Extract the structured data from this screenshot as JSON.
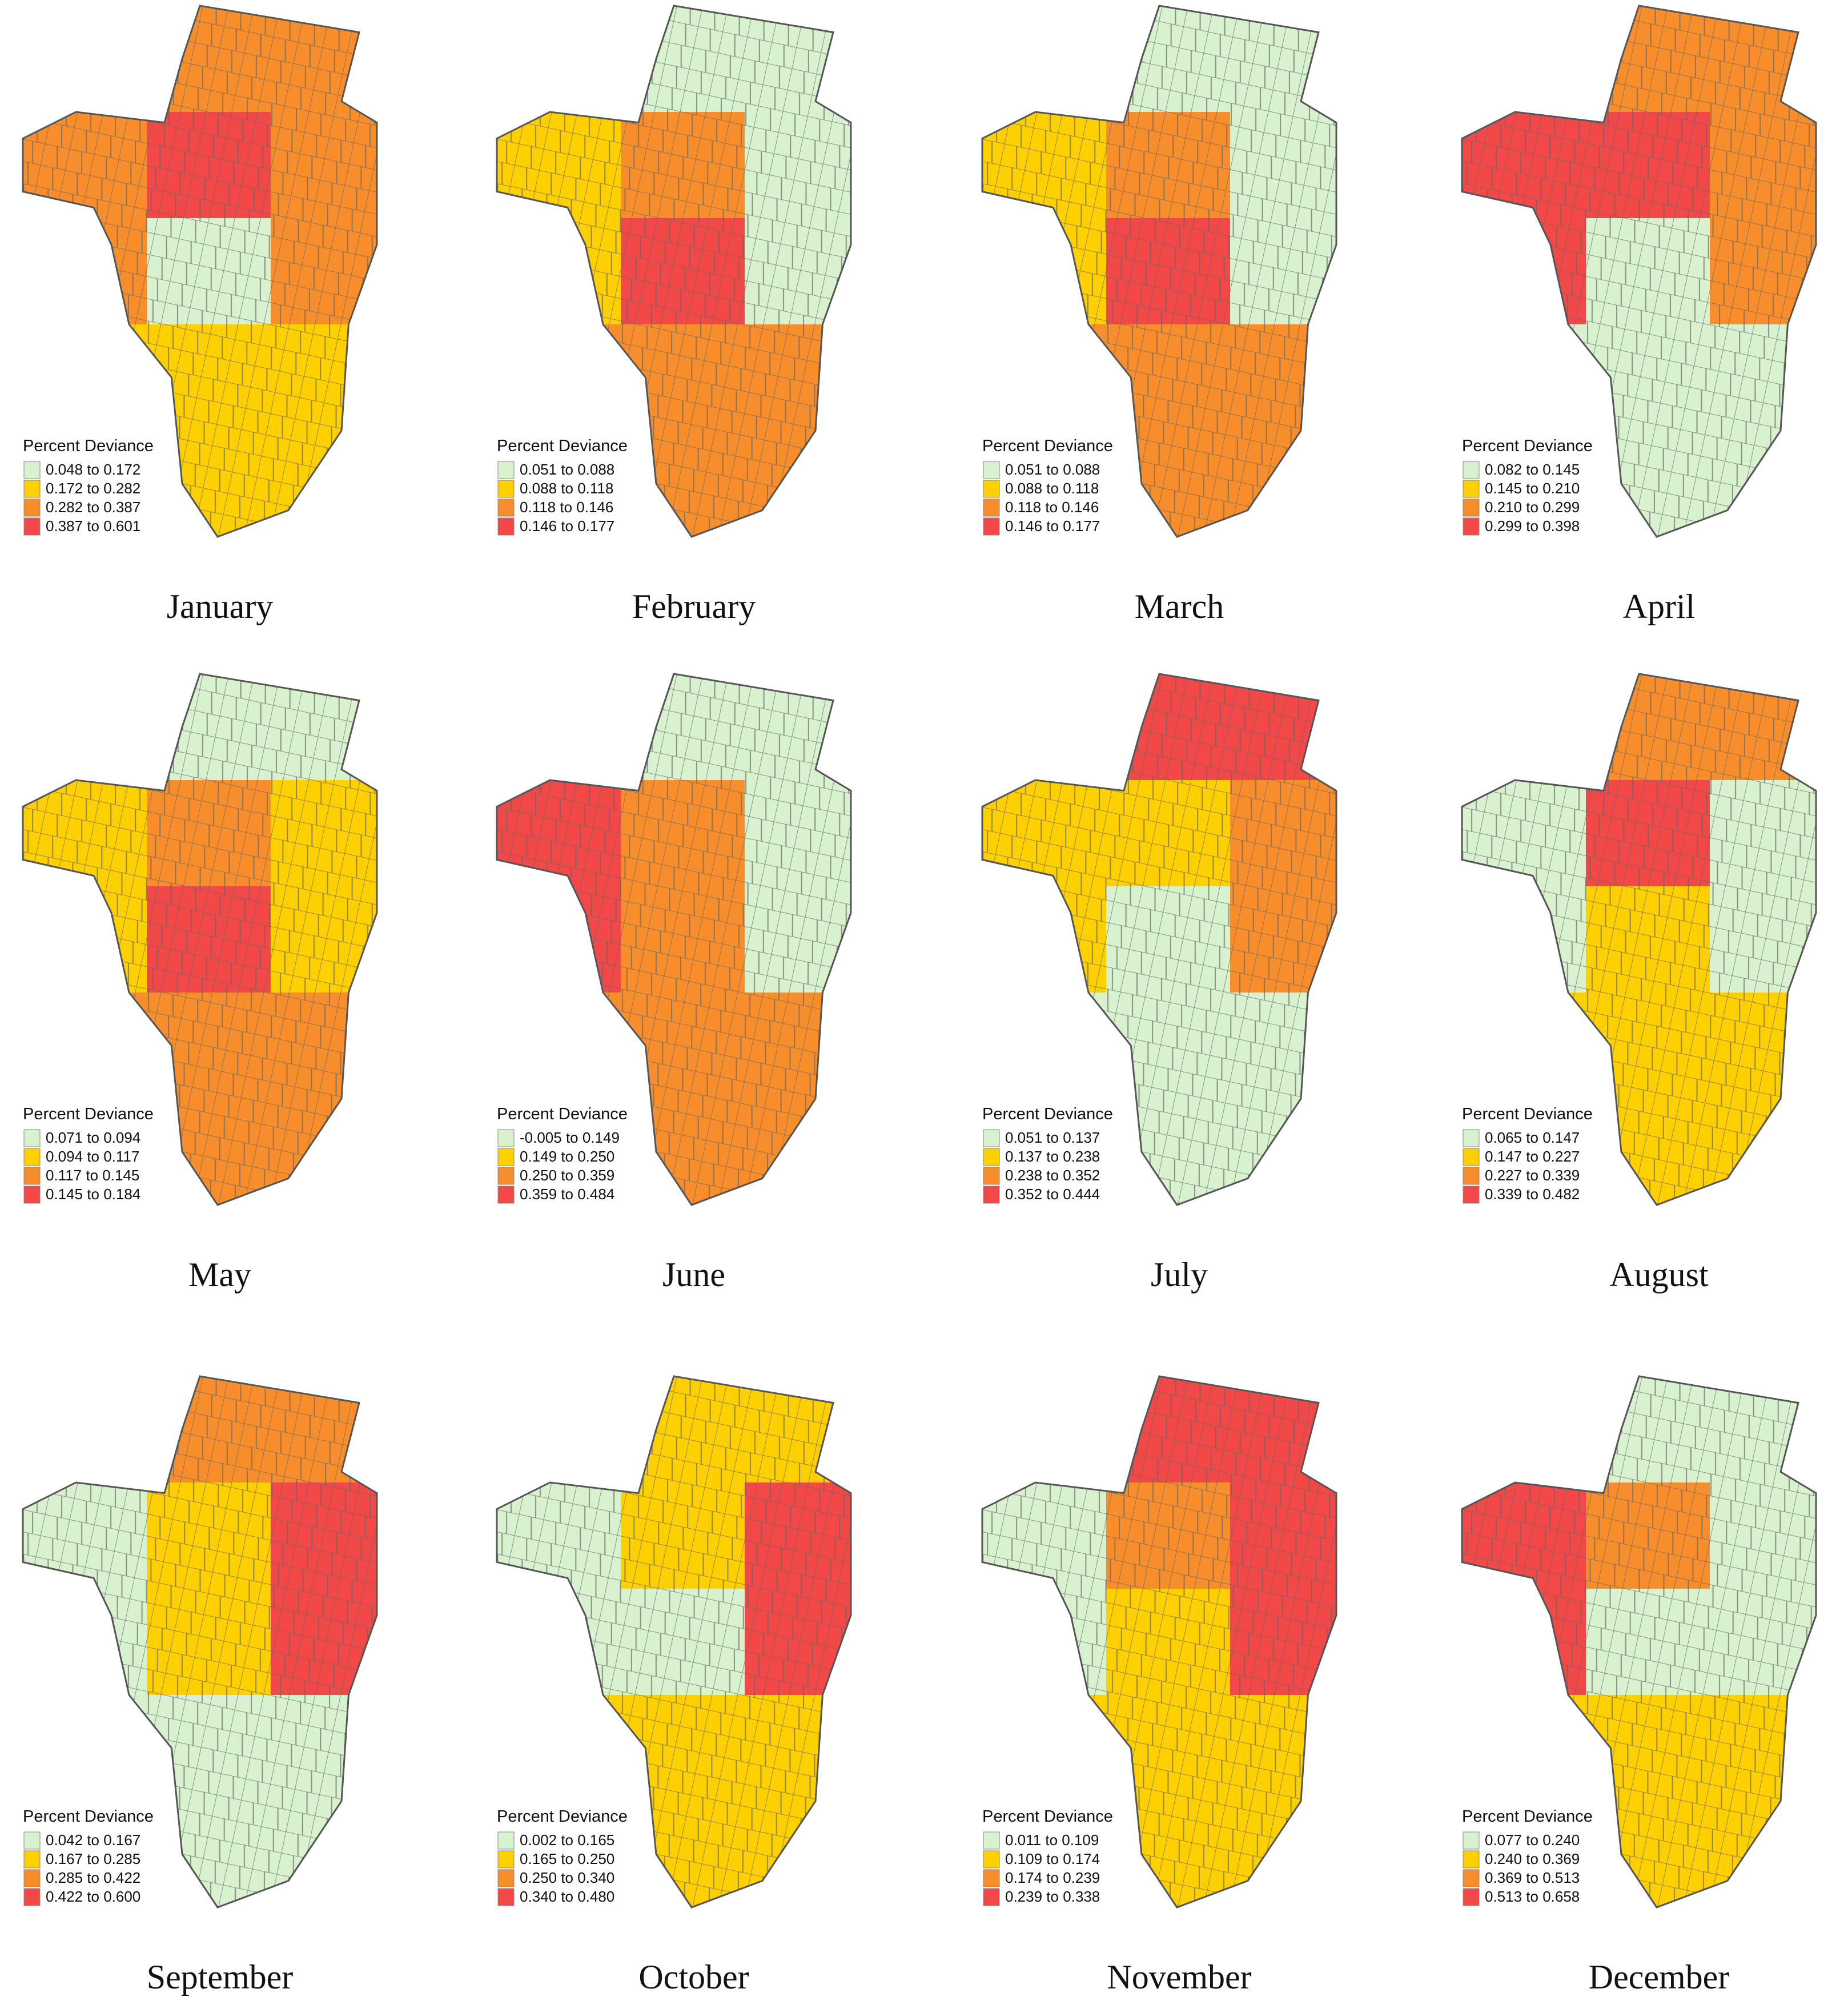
{
  "legend_colors": [
    "#d8f2cf",
    "#ffd000",
    "#f78e2b",
    "#f24848"
  ],
  "zone_names": [
    "north",
    "west",
    "center-north",
    "east",
    "center",
    "south"
  ],
  "panels": [
    {
      "month": "January",
      "legend_title": "Percent Deviance",
      "legend": [
        "0.048 to 0.172",
        "0.172 to 0.282",
        "0.282 to 0.387",
        "0.387 to 0.601"
      ],
      "zones": [
        2,
        2,
        3,
        2,
        0,
        1
      ]
    },
    {
      "month": "February",
      "legend_title": "Percent Deviance",
      "legend": [
        "0.051 to 0.088",
        "0.088 to 0.118",
        "0.118 to 0.146",
        "0.146 to 0.177"
      ],
      "zones": [
        0,
        1,
        2,
        0,
        3,
        2
      ]
    },
    {
      "month": "March",
      "legend_title": "Percent Deviance",
      "legend": [
        "0.051 to 0.088",
        "0.088 to 0.118",
        "0.118 to 0.146",
        "0.146 to 0.177"
      ],
      "zones": [
        0,
        1,
        2,
        0,
        3,
        2
      ]
    },
    {
      "month": "April",
      "legend_title": "Percent Deviance",
      "legend": [
        "0.082 to 0.145",
        "0.145 to 0.210",
        "0.210 to 0.299",
        "0.299 to 0.398"
      ],
      "zones": [
        2,
        3,
        3,
        2,
        0,
        0
      ]
    },
    {
      "month": "May",
      "legend_title": "Percent Deviance",
      "legend": [
        "0.071 to 0.094",
        "0.094 to 0.117",
        "0.117 to 0.145",
        "0.145 to 0.184"
      ],
      "zones": [
        0,
        1,
        2,
        1,
        3,
        2
      ]
    },
    {
      "month": "June",
      "legend_title": "Percent Deviance",
      "legend": [
        "-0.005 to 0.149",
        "0.149 to 0.250",
        "0.250 to 0.359",
        "0.359 to 0.484"
      ],
      "zones": [
        0,
        3,
        2,
        0,
        2,
        2
      ]
    },
    {
      "month": "July",
      "legend_title": "Percent Deviance",
      "legend": [
        "0.051 to 0.137",
        "0.137 to 0.238",
        "0.238 to 0.352",
        "0.352 to 0.444"
      ],
      "zones": [
        3,
        1,
        1,
        2,
        0,
        0
      ]
    },
    {
      "month": "August",
      "legend_title": "Percent Deviance",
      "legend": [
        "0.065 to 0.147",
        "0.147 to 0.227",
        "0.227 to 0.339",
        "0.339 to 0.482"
      ],
      "zones": [
        2,
        0,
        3,
        0,
        1,
        1
      ]
    },
    {
      "month": "September",
      "legend_title": "Percent Deviance",
      "legend": [
        "0.042 to 0.167",
        "0.167 to 0.285",
        "0.285 to 0.422",
        "0.422 to 0.600"
      ],
      "zones": [
        2,
        0,
        1,
        3,
        1,
        0
      ]
    },
    {
      "month": "October",
      "legend_title": "Percent Deviance",
      "legend": [
        "0.002 to 0.165",
        "0.165 to 0.250",
        "0.250 to 0.340",
        "0.340 to 0.480"
      ],
      "zones": [
        1,
        0,
        1,
        3,
        0,
        1
      ]
    },
    {
      "month": "November",
      "legend_title": "Percent Deviance",
      "legend": [
        "0.011 to 0.109",
        "0.109 to 0.174",
        "0.174 to 0.239",
        "0.239 to 0.338"
      ],
      "zones": [
        3,
        0,
        2,
        3,
        1,
        1
      ]
    },
    {
      "month": "December",
      "legend_title": "Percent Deviance",
      "legend": [
        "0.077 to 0.240",
        "0.240 to 0.369",
        "0.369 to 0.513",
        "0.513 to 0.658"
      ],
      "zones": [
        0,
        3,
        2,
        0,
        0,
        1
      ]
    }
  ]
}
